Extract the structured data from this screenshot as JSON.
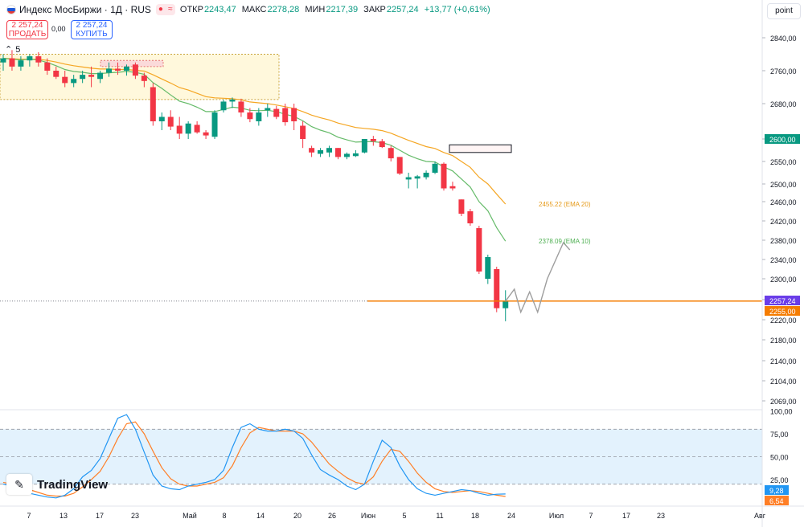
{
  "header": {
    "symbol": "Индекс МосБиржи · 1Д · RUS",
    "open_label": "ОТКР",
    "open": "2243,47",
    "high_label": "МАКС",
    "high": "2278,28",
    "low_label": "МИН",
    "low": "2217,39",
    "close_label": "ЗАКР",
    "close": "2257,24",
    "change": "+13,77 (+0,61%)"
  },
  "trade": {
    "sell_price": "2 257,24",
    "sell_label": "ПРОДАТЬ",
    "spread": "0,00",
    "buy_price": "2 257,24",
    "buy_label": "КУПИТЬ"
  },
  "indicator_collapse": "5",
  "point_button": "point",
  "logo_text": "TradingView",
  "colors": {
    "up": "#089981",
    "down": "#f23645",
    "ema10": "#66bb6a",
    "ema20": "#f5a623",
    "price_line": "#f57c00",
    "stoch_k": "#2196f3",
    "stoch_d": "#ff7f27",
    "zone_fill": "#fff8dc",
    "rsi_band": "#e3f2fd"
  },
  "chart_data": {
    "type": "candlestick",
    "price_axis": {
      "ylim": [
        2069,
        2880
      ],
      "ticks": [
        "2840,00",
        "2760,00",
        "2680,00",
        "2600,00",
        "2550,00",
        "2500,00",
        "2460,00",
        "2420,00",
        "2380,00",
        "2340,00",
        "2300,00",
        "2260,00",
        "2220,00",
        "2180,00",
        "2140,00",
        "2104,00",
        "2069,00"
      ],
      "tick_values": [
        2840,
        2760,
        2680,
        2600,
        2550,
        2500,
        2460,
        2420,
        2380,
        2340,
        2300,
        2260,
        2220,
        2180,
        2140,
        2104,
        2069
      ]
    },
    "x_axis": {
      "labels": [
        "7",
        "13",
        "17",
        "23",
        "Май",
        "8",
        "14",
        "20",
        "26",
        "Июн",
        "5",
        "11",
        "18",
        "24",
        "Июл",
        "7",
        "17",
        "23",
        "Авг"
      ]
    },
    "candles": [
      {
        "o": 2780,
        "h": 2800,
        "l": 2760,
        "c": 2790
      },
      {
        "o": 2790,
        "h": 2810,
        "l": 2760,
        "c": 2770
      },
      {
        "o": 2770,
        "h": 2795,
        "l": 2760,
        "c": 2785
      },
      {
        "o": 2785,
        "h": 2800,
        "l": 2770,
        "c": 2795
      },
      {
        "o": 2795,
        "h": 2805,
        "l": 2770,
        "c": 2780
      },
      {
        "o": 2780,
        "h": 2790,
        "l": 2750,
        "c": 2760
      },
      {
        "o": 2760,
        "h": 2770,
        "l": 2740,
        "c": 2745
      },
      {
        "o": 2745,
        "h": 2760,
        "l": 2720,
        "c": 2730
      },
      {
        "o": 2730,
        "h": 2750,
        "l": 2720,
        "c": 2740
      },
      {
        "o": 2740,
        "h": 2760,
        "l": 2730,
        "c": 2750
      },
      {
        "o": 2750,
        "h": 2770,
        "l": 2720,
        "c": 2745
      },
      {
        "o": 2740,
        "h": 2760,
        "l": 2730,
        "c": 2755
      },
      {
        "o": 2755,
        "h": 2780,
        "l": 2745,
        "c": 2765
      },
      {
        "o": 2765,
        "h": 2780,
        "l": 2750,
        "c": 2760
      },
      {
        "o": 2760,
        "h": 2775,
        "l": 2748,
        "c": 2770
      },
      {
        "o": 2775,
        "h": 2780,
        "l": 2740,
        "c": 2748
      },
      {
        "o": 2748,
        "h": 2755,
        "l": 2720,
        "c": 2735
      },
      {
        "o": 2720,
        "h": 2730,
        "l": 2630,
        "c": 2640
      },
      {
        "o": 2640,
        "h": 2660,
        "l": 2620,
        "c": 2650
      },
      {
        "o": 2650,
        "h": 2665,
        "l": 2620,
        "c": 2628
      },
      {
        "o": 2630,
        "h": 2650,
        "l": 2600,
        "c": 2612
      },
      {
        "o": 2612,
        "h": 2640,
        "l": 2600,
        "c": 2635
      },
      {
        "o": 2632,
        "h": 2640,
        "l": 2612,
        "c": 2615
      },
      {
        "o": 2615,
        "h": 2620,
        "l": 2600,
        "c": 2608
      },
      {
        "o": 2605,
        "h": 2665,
        "l": 2600,
        "c": 2660
      },
      {
        "o": 2665,
        "h": 2690,
        "l": 2660,
        "c": 2685
      },
      {
        "o": 2685,
        "h": 2695,
        "l": 2670,
        "c": 2690
      },
      {
        "o": 2685,
        "h": 2692,
        "l": 2650,
        "c": 2660
      },
      {
        "o": 2660,
        "h": 2670,
        "l": 2638,
        "c": 2645
      },
      {
        "o": 2640,
        "h": 2670,
        "l": 2630,
        "c": 2660
      },
      {
        "o": 2665,
        "h": 2680,
        "l": 2650,
        "c": 2670
      },
      {
        "o": 2668,
        "h": 2675,
        "l": 2645,
        "c": 2650
      },
      {
        "o": 2670,
        "h": 2680,
        "l": 2630,
        "c": 2638
      },
      {
        "o": 2670,
        "h": 2680,
        "l": 2620,
        "c": 2640
      },
      {
        "o": 2630,
        "h": 2640,
        "l": 2580,
        "c": 2600
      },
      {
        "o": 2580,
        "h": 2585,
        "l": 2560,
        "c": 2570
      },
      {
        "o": 2567,
        "h": 2580,
        "l": 2560,
        "c": 2575
      },
      {
        "o": 2570,
        "h": 2585,
        "l": 2560,
        "c": 2580
      },
      {
        "o": 2580,
        "h": 2580,
        "l": 2555,
        "c": 2560
      },
      {
        "o": 2560,
        "h": 2570,
        "l": 2555,
        "c": 2567
      },
      {
        "o": 2562,
        "h": 2575,
        "l": 2560,
        "c": 2568
      },
      {
        "o": 2570,
        "h": 2600,
        "l": 2568,
        "c": 2600
      },
      {
        "o": 2600,
        "h": 2607,
        "l": 2585,
        "c": 2595
      },
      {
        "o": 2595,
        "h": 2600,
        "l": 2580,
        "c": 2582
      },
      {
        "o": 2580,
        "h": 2585,
        "l": 2550,
        "c": 2557
      },
      {
        "o": 2560,
        "h": 2560,
        "l": 2520,
        "c": 2523
      },
      {
        "o": 2510,
        "h": 2525,
        "l": 2490,
        "c": 2515
      },
      {
        "o": 2512,
        "h": 2520,
        "l": 2490,
        "c": 2517
      },
      {
        "o": 2515,
        "h": 2530,
        "l": 2510,
        "c": 2525
      },
      {
        "o": 2525,
        "h": 2550,
        "l": 2522,
        "c": 2545
      },
      {
        "o": 2545,
        "h": 2548,
        "l": 2485,
        "c": 2490
      },
      {
        "o": 2495,
        "h": 2505,
        "l": 2485,
        "c": 2490
      },
      {
        "o": 2465,
        "h": 2465,
        "l": 2430,
        "c": 2435
      },
      {
        "o": 2440,
        "h": 2445,
        "l": 2410,
        "c": 2415
      },
      {
        "o": 2405,
        "h": 2410,
        "l": 2310,
        "c": 2315
      },
      {
        "o": 2300,
        "h": 2350,
        "l": 2290,
        "c": 2345
      },
      {
        "o": 2320,
        "h": 2325,
        "l": 2235,
        "c": 2243
      },
      {
        "o": 2243,
        "h": 2278,
        "l": 2217,
        "c": 2257
      }
    ],
    "ema10": {
      "name": "2378.09 (EMA 10)",
      "values": [
        2790,
        2788,
        2786,
        2788,
        2786,
        2780,
        2772,
        2763,
        2758,
        2756,
        2753,
        2753,
        2755,
        2756,
        2758,
        2756,
        2751,
        2731,
        2717,
        2701,
        2686,
        2680,
        2672,
        2662,
        2662,
        2667,
        2672,
        2670,
        2665,
        2664,
        2665,
        2662,
        2656,
        2651,
        2641,
        2628,
        2620,
        2614,
        2604,
        2598,
        2593,
        2594,
        2594,
        2592,
        2586,
        2575,
        2564,
        2556,
        2550,
        2549,
        2538,
        2529,
        2511,
        2493,
        2460,
        2441,
        2406,
        2378
      ]
    },
    "ema20": {
      "name": "2455.22 (EMA 20)",
      "values": [
        2790,
        2789,
        2788,
        2788,
        2788,
        2785,
        2781,
        2776,
        2772,
        2769,
        2766,
        2764,
        2764,
        2763,
        2763,
        2761,
        2759,
        2750,
        2740,
        2730,
        2719,
        2713,
        2705,
        2697,
        2694,
        2693,
        2692,
        2689,
        2684,
        2682,
        2680,
        2677,
        2673,
        2669,
        2662,
        2654,
        2648,
        2643,
        2636,
        2631,
        2626,
        2624,
        2622,
        2619,
        2613,
        2605,
        2597,
        2590,
        2583,
        2579,
        2570,
        2563,
        2550,
        2537,
        2515,
        2500,
        2477,
        2455
      ]
    },
    "forecast_path": [
      [
        2257,
        0
      ],
      [
        2280,
        1
      ],
      [
        2235,
        2
      ],
      [
        2275,
        3
      ],
      [
        2235,
        4
      ],
      [
        2300,
        5
      ],
      [
        2375,
        6
      ],
      [
        2360,
        7
      ]
    ],
    "current_price": {
      "label": "2257,24",
      "value": 2257.24,
      "color": "#6a3de8"
    },
    "target_price": {
      "label": "2255,00",
      "value": 2255,
      "color": "#f57c00"
    },
    "level_label": {
      "label": "2600,00",
      "value": 2600
    },
    "ema10_label": "2378.09 (EMA 10)",
    "ema20_label": "2455.22 (EMA 20)",
    "oscillator": {
      "ylim": [
        0,
        100
      ],
      "ticks": [
        "100,00",
        "75,00",
        "50,00",
        "25,00"
      ],
      "tick_values": [
        100,
        75,
        50,
        25
      ],
      "band": [
        20,
        80
      ],
      "k_label": "9,28",
      "d_label": "6,54",
      "k": [
        20,
        18,
        15,
        10,
        8,
        6,
        5,
        8,
        15,
        28,
        35,
        48,
        70,
        92,
        96,
        80,
        55,
        30,
        18,
        15,
        14,
        18,
        20,
        22,
        25,
        35,
        60,
        82,
        86,
        80,
        78,
        78,
        80,
        78,
        70,
        52,
        36,
        30,
        25,
        18,
        14,
        20,
        45,
        68,
        60,
        40,
        25,
        15,
        10,
        8,
        10,
        12,
        14,
        13,
        10,
        8,
        9,
        9.28
      ],
      "d": [
        22,
        20,
        18,
        14,
        11,
        8,
        7,
        7,
        10,
        17,
        25,
        34,
        50,
        70,
        86,
        88,
        75,
        56,
        38,
        26,
        20,
        18,
        18,
        20,
        22,
        27,
        40,
        60,
        76,
        82,
        80,
        78,
        78,
        78,
        75,
        66,
        54,
        42,
        34,
        27,
        22,
        20,
        28,
        45,
        58,
        56,
        45,
        32,
        22,
        15,
        12,
        11,
        12,
        13,
        12,
        10,
        8,
        6.54
      ]
    }
  }
}
